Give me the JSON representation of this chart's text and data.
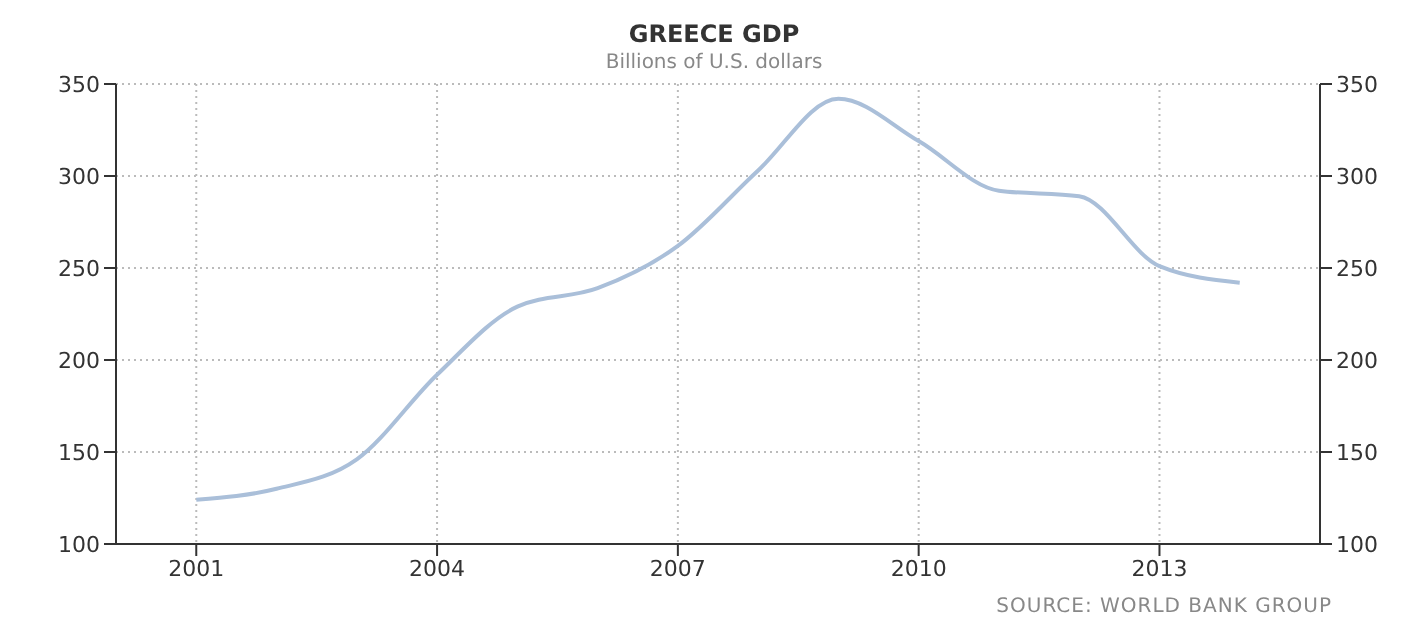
{
  "chart_data": {
    "type": "line",
    "title": "GREECE GDP",
    "subtitle": "Billions of U.S. dollars",
    "x": [
      2001,
      2002,
      2003,
      2004,
      2005,
      2006,
      2007,
      2008,
      2009,
      2010,
      2011,
      2012,
      2013,
      2014
    ],
    "series": [
      {
        "color": "#aabfd9",
        "values": [
          124,
          130,
          146,
          192,
          229,
          239,
          262,
          303,
          342,
          319,
          292,
          289,
          251,
          242
        ]
      }
    ],
    "xlim": [
      2000,
      2015
    ],
    "xticks": [
      2001,
      2004,
      2007,
      2010,
      2013
    ],
    "ylim": [
      100,
      350
    ],
    "yticks": [
      100,
      150,
      200,
      250,
      300,
      350
    ],
    "y2lim": [
      100,
      350
    ],
    "y2ticks": [
      100,
      150,
      200,
      250,
      300,
      350
    ],
    "grid": true,
    "annotations": [
      "SOURCE: WORLD BANK GROUP"
    ]
  }
}
